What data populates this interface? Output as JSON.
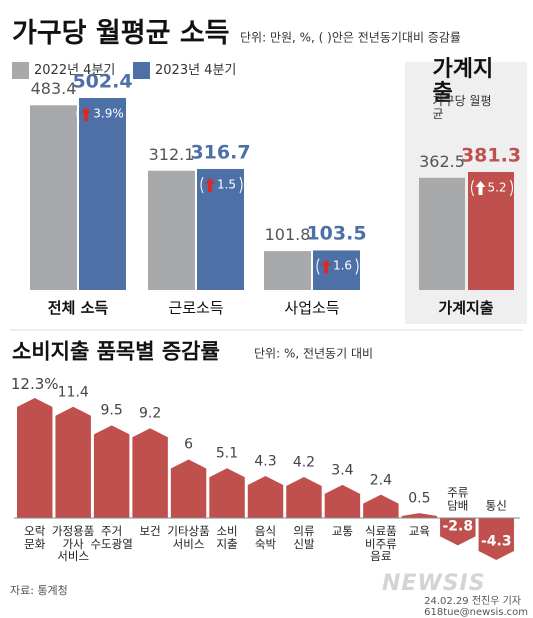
{
  "chart_data": [
    {
      "type": "bar",
      "title": "가구당 월평균 소득",
      "unit": "단위: 만원, %, ( )안은 전년동기대비 증감률",
      "categories": [
        "전체 소득",
        "근로소득",
        "사업소득"
      ],
      "series": [
        {
          "name": "2022년 4분기",
          "color": "#a8a9ab",
          "values": [
            483.4,
            312.1,
            101.8
          ]
        },
        {
          "name": "2023년 4분기",
          "color": "#4d70a6",
          "values": [
            502.4,
            316.7,
            103.5
          ],
          "changes": [
            {
              "value": 3.9,
              "label": "3.9%"
            },
            1.5,
            1.6
          ]
        }
      ]
    },
    {
      "type": "bar",
      "title": "가계지출",
      "subtitle": "가구당 월평균",
      "categories": [
        "가계지출"
      ],
      "series": [
        {
          "color": "#a8a9ab",
          "values": [
            362.5
          ]
        },
        {
          "color": "#c0504d",
          "values": [
            381.3
          ],
          "changes": [
            5.2
          ]
        }
      ]
    },
    {
      "type": "bar",
      "title": "소비지출 품목별 증감률",
      "unit": "단위: %, 전년동기 대비",
      "color": "#c0504d",
      "categories": [
        "오락\n문화",
        "가정용품\n가사\n서비스",
        "주거\n수도광열",
        "보건",
        "기타상품\n서비스",
        "소비\n지출",
        "음식\n숙박",
        "의류\n신발",
        "교통",
        "식료품\n비주류\n음료",
        "교육",
        "주류\n담배",
        "통신"
      ],
      "values": [
        12.3,
        11.4,
        9.5,
        9.2,
        6,
        5.1,
        4.3,
        4.2,
        3.4,
        2.4,
        0.5,
        -2.8,
        -4.3
      ],
      "value_labels": [
        "12.3%",
        "11.4",
        "9.5",
        "9.2",
        "6",
        "5.1",
        "4.3",
        "4.2",
        "3.4",
        "2.4",
        "0.5",
        "-2.8",
        "-4.3"
      ]
    }
  ],
  "source": "자료: 통계청",
  "credit": "24.02.29 전진우 기자 618tue@newsis.com",
  "watermark": "NEWSIS"
}
